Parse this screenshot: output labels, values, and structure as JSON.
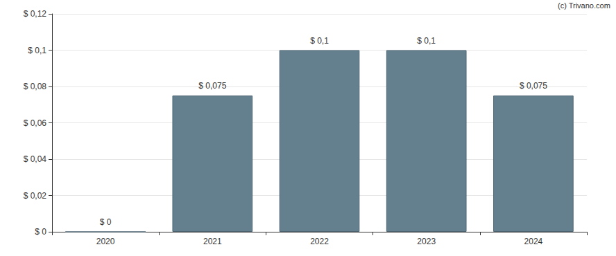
{
  "chart_data": {
    "type": "bar",
    "annotation": "(c) Trivano.com",
    "categories": [
      "2020",
      "2021",
      "2022",
      "2023",
      "2024"
    ],
    "values": [
      0,
      0.075,
      0.1,
      0.1,
      0.075
    ],
    "value_labels": [
      "$ 0",
      "$ 0,075",
      "$ 0,1",
      "$ 0,1",
      "$ 0,075"
    ],
    "data_labels": true,
    "color": "#64808f",
    "ylim": [
      0,
      0.12
    ],
    "yticks": [
      {
        "value": 0,
        "label": "$ 0"
      },
      {
        "value": 0.02,
        "label": "$ 0,02"
      },
      {
        "value": 0.04,
        "label": "$ 0,04"
      },
      {
        "value": 0.06,
        "label": "$ 0,06"
      },
      {
        "value": 0.08,
        "label": "$ 0,08"
      },
      {
        "value": 0.1,
        "label": "$ 0,1"
      },
      {
        "value": 0.12,
        "label": "$ 0,12"
      }
    ],
    "grid": true
  }
}
